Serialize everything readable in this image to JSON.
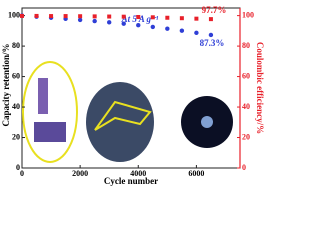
{
  "chart_data": {
    "type": "scatter",
    "x_label": "Cycle number",
    "y_label": "Capacity retention/%",
    "y2_label": "Coulombic efficiency/%",
    "annotations": [
      "At 5 A g⁻¹",
      "97.7%",
      "87.3%"
    ],
    "x": [
      0,
      500,
      1000,
      1500,
      2000,
      2500,
      3000,
      3500,
      4000,
      4500,
      5000,
      5500,
      6000,
      6500
    ],
    "series": [
      {
        "color": "#2f3fd6",
        "marker": "circle",
        "values": [
          100,
          99.3,
          98.6,
          97.9,
          97.2,
          96.4,
          95.6,
          94.7,
          93.7,
          92.6,
          91.4,
          90.1,
          88.7,
          87.3
        ]
      },
      {
        "color": "#e8202a",
        "marker": "square",
        "axis": "y2",
        "values": [
          99.8,
          99.8,
          99.7,
          99.7,
          99.6,
          99.5,
          99.4,
          99.3,
          99.1,
          98.9,
          98.6,
          98.3,
          98.0,
          97.7
        ]
      }
    ],
    "xlim": [
      0,
      7500
    ],
    "xticks": [
      0,
      2000,
      4000,
      6000
    ],
    "ylim": [
      0,
      105
    ],
    "yticks": [
      0,
      20,
      40,
      60,
      80,
      100
    ],
    "y2lim": [
      0,
      105
    ],
    "y2ticks": [
      0,
      20,
      40,
      60,
      80,
      100
    ]
  }
}
